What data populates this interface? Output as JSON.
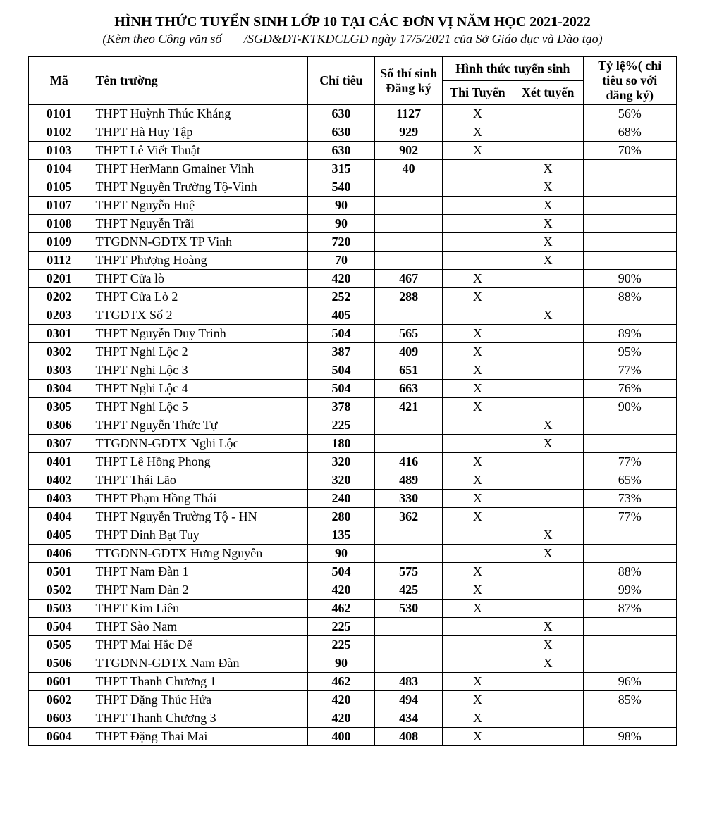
{
  "header": {
    "title": "HÌNH THỨC TUYỂN SINH LỚP 10 TẠI CÁC ĐƠN VỊ NĂM HỌC 2021-2022",
    "subtitle": "(Kèm theo Công văn số       /SGD&ĐT-KTKĐCLGD ngày 17/5/2021 của Sở Giáo dục và Đào tạo)"
  },
  "columns": {
    "ma": "Mã",
    "ten": "Tên trường",
    "chitieu": "Chỉ tiêu",
    "sothi": "Số thí sinh Đăng ký",
    "hinhthuc": "Hình thức tuyển sinh",
    "thituyen": "Thi Tuyển",
    "xettuyen": "Xét tuyển",
    "tyle": "Tỷ lệ%( chỉ tiêu so với đăng ký)"
  },
  "rows": [
    {
      "ma": "0101",
      "ten": "THPT Huỳnh Thúc Kháng",
      "chitieu": "630",
      "dangky": "1127",
      "thi": "X",
      "xet": "",
      "tyle": "56%"
    },
    {
      "ma": "0102",
      "ten": "THPT Hà Huy Tập",
      "chitieu": "630",
      "dangky": "929",
      "thi": "X",
      "xet": "",
      "tyle": "68%"
    },
    {
      "ma": "0103",
      "ten": "THPT Lê Viết Thuật",
      "chitieu": "630",
      "dangky": "902",
      "thi": "X",
      "xet": "",
      "tyle": "70%"
    },
    {
      "ma": "0104",
      "ten": "THPT  HerMann Gmainer Vinh",
      "chitieu": "315",
      "dangky": "40",
      "thi": "",
      "xet": "X",
      "tyle": ""
    },
    {
      "ma": "0105",
      "ten": "THPT Nguyễn Trường Tộ-Vinh",
      "chitieu": "540",
      "dangky": "",
      "thi": "",
      "xet": "X",
      "tyle": ""
    },
    {
      "ma": "0107",
      "ten": "THPT  Nguyễn Huệ",
      "chitieu": "90",
      "dangky": "",
      "thi": "",
      "xet": "X",
      "tyle": ""
    },
    {
      "ma": "0108",
      "ten": "THPT  Nguyễn Trãi",
      "chitieu": "90",
      "dangky": "",
      "thi": "",
      "xet": "X",
      "tyle": ""
    },
    {
      "ma": "0109",
      "ten": "TTGDNN-GDTX TP Vinh",
      "chitieu": "720",
      "dangky": "",
      "thi": "",
      "xet": "X",
      "tyle": ""
    },
    {
      "ma": "0112",
      "ten": "THPT  Phượng Hoàng",
      "chitieu": "70",
      "dangky": "",
      "thi": "",
      "xet": "X",
      "tyle": ""
    },
    {
      "ma": "0201",
      "ten": "THPT Cửa lò",
      "chitieu": "420",
      "dangky": "467",
      "thi": "X",
      "xet": "",
      "tyle": "90%"
    },
    {
      "ma": "0202",
      "ten": "THPT Cửa Lò 2",
      "chitieu": "252",
      "dangky": "288",
      "thi": "X",
      "xet": "",
      "tyle": "88%"
    },
    {
      "ma": "0203",
      "ten": "TTGDTX Số 2",
      "chitieu": "405",
      "dangky": "",
      "thi": "",
      "xet": "X",
      "tyle": ""
    },
    {
      "ma": "0301",
      "ten": "THPT Nguyễn Duy Trinh",
      "chitieu": "504",
      "dangky": "565",
      "thi": "X",
      "xet": "",
      "tyle": "89%"
    },
    {
      "ma": "0302",
      "ten": "THPT Nghi Lộc 2",
      "chitieu": "387",
      "dangky": "409",
      "thi": "X",
      "xet": "",
      "tyle": "95%"
    },
    {
      "ma": "0303",
      "ten": "THPT Nghi Lộc 3",
      "chitieu": "504",
      "dangky": "651",
      "thi": "X",
      "xet": "",
      "tyle": "77%"
    },
    {
      "ma": "0304",
      "ten": "THPT Nghi Lộc 4",
      "chitieu": "504",
      "dangky": "663",
      "thi": "X",
      "xet": "",
      "tyle": "76%"
    },
    {
      "ma": "0305",
      "ten": "THPT Nghi Lộc 5",
      "chitieu": "378",
      "dangky": "421",
      "thi": "X",
      "xet": "",
      "tyle": "90%"
    },
    {
      "ma": "0306",
      "ten": "THPT Nguyễn Thức Tự",
      "chitieu": "225",
      "dangky": "",
      "thi": "",
      "xet": "X",
      "tyle": ""
    },
    {
      "ma": "0307",
      "ten": "TTGDNN-GDTX Nghi Lộc",
      "chitieu": "180",
      "dangky": "",
      "thi": "",
      "xet": "X",
      "tyle": ""
    },
    {
      "ma": "0401",
      "ten": "THPT Lê Hồng Phong",
      "chitieu": "320",
      "dangky": "416",
      "thi": "X",
      "xet": "",
      "tyle": "77%"
    },
    {
      "ma": "0402",
      "ten": "THPT Thái Lão",
      "chitieu": "320",
      "dangky": "489",
      "thi": "X",
      "xet": "",
      "tyle": "65%"
    },
    {
      "ma": "0403",
      "ten": "THPT Phạm Hồng Thái",
      "chitieu": "240",
      "dangky": "330",
      "thi": "X",
      "xet": "",
      "tyle": "73%"
    },
    {
      "ma": "0404",
      "ten": "THPT Nguyễn Trường Tộ - HN",
      "chitieu": "280",
      "dangky": "362",
      "thi": "X",
      "xet": "",
      "tyle": "77%"
    },
    {
      "ma": "0405",
      "ten": "THPT Đinh Bạt Tuy",
      "chitieu": "135",
      "dangky": "",
      "thi": "",
      "xet": "X",
      "tyle": ""
    },
    {
      "ma": "0406",
      "ten": "TTGDNN-GDTX Hưng Nguyên",
      "chitieu": "90",
      "dangky": "",
      "thi": "",
      "xet": "X",
      "tyle": ""
    },
    {
      "ma": "0501",
      "ten": "THPT Nam Đàn 1",
      "chitieu": "504",
      "dangky": "575",
      "thi": "X",
      "xet": "",
      "tyle": "88%"
    },
    {
      "ma": "0502",
      "ten": "THPT Nam Đàn 2",
      "chitieu": "420",
      "dangky": "425",
      "thi": "X",
      "xet": "",
      "tyle": "99%"
    },
    {
      "ma": "0503",
      "ten": "THPT Kim Liên",
      "chitieu": "462",
      "dangky": "530",
      "thi": "X",
      "xet": "",
      "tyle": "87%"
    },
    {
      "ma": "0504",
      "ten": "THPT  Sào Nam",
      "chitieu": "225",
      "dangky": "",
      "thi": "",
      "xet": "X",
      "tyle": ""
    },
    {
      "ma": "0505",
      "ten": "THPT Mai Hắc Đế",
      "chitieu": "225",
      "dangky": "",
      "thi": "",
      "xet": "X",
      "tyle": ""
    },
    {
      "ma": "0506",
      "ten": "TTGDNN-GDTX Nam Đàn",
      "chitieu": "90",
      "dangky": "",
      "thi": "",
      "xet": "X",
      "tyle": ""
    },
    {
      "ma": "0601",
      "ten": "THPT Thanh Chương 1",
      "chitieu": "462",
      "dangky": "483",
      "thi": "X",
      "xet": "",
      "tyle": "96%"
    },
    {
      "ma": "0602",
      "ten": "THPT Đặng Thúc Hứa",
      "chitieu": "420",
      "dangky": "494",
      "thi": "X",
      "xet": "",
      "tyle": "85%"
    },
    {
      "ma": "0603",
      "ten": "THPT Thanh Chương 3",
      "chitieu": "420",
      "dangky": "434",
      "thi": "X",
      "xet": "",
      "tyle": ""
    },
    {
      "ma": "0604",
      "ten": "THPT Đặng Thai Mai",
      "chitieu": "400",
      "dangky": "408",
      "thi": "X",
      "xet": "",
      "tyle": "98%"
    }
  ]
}
